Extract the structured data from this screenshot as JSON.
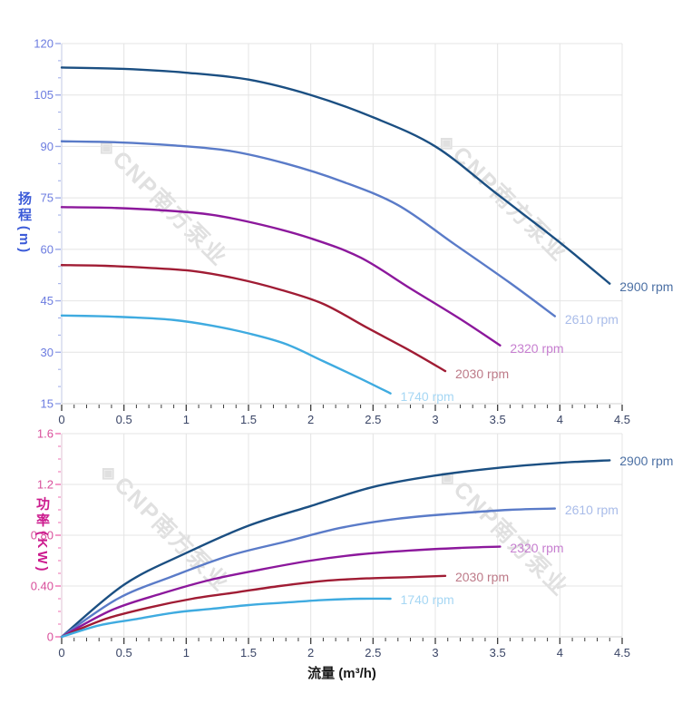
{
  "page": {
    "background": "#ffffff"
  },
  "watermark": {
    "logo_glyph": "◈",
    "text": "CNP南方泵业",
    "color": "#c7c7c7"
  },
  "x_axis": {
    "title": "流量 (m³/h)",
    "title_color": "#1a1a1a",
    "min": 0,
    "max": 4.5,
    "major_step": 0.5,
    "minor_step": 0.1,
    "tick_labels": [
      "0",
      "0.5",
      "1",
      "1.5",
      "2",
      "2.5",
      "3",
      "3.5",
      "4",
      "4.5"
    ],
    "tick_label_color": "#3a4566",
    "tick_color": "#3c3c3c",
    "axis_line_color": "#d9d9d9"
  },
  "chart_data": [
    {
      "type": "line",
      "id": "head",
      "axis_title_cn": "扬程",
      "axis_title_unit": "(m)",
      "axis_title_color": "#3c5bd8",
      "ylabel": "扬程 (m)",
      "xlabel": "流量 (m³/h)",
      "xlim": [
        0,
        4.5
      ],
      "ylim": [
        15,
        120
      ],
      "y_major": 15,
      "y_minor": 5,
      "y_tick_labels": [
        "15",
        "30",
        "45",
        "60",
        "75",
        "90",
        "105",
        "120"
      ],
      "y_tick_label_color": "#6c7ce0",
      "y_tick_color": "#9aa8e8",
      "y_axis_line_color": "#ccd2ea",
      "grid": true,
      "legend_position": "end-of-line",
      "series": [
        {
          "label": "2900 rpm",
          "color": "#1b4f82",
          "label_color": "#4c70a4",
          "points": [
            [
              0,
              113
            ],
            [
              0.5,
              112.6
            ],
            [
              1,
              111.5
            ],
            [
              1.5,
              109.5
            ],
            [
              2,
              105
            ],
            [
              2.5,
              98.5
            ],
            [
              3,
              90
            ],
            [
              3.5,
              76
            ],
            [
              4,
              62
            ],
            [
              4.4,
              50
            ]
          ]
        },
        {
          "label": "2610 rpm",
          "color": "#5a7bc8",
          "label_color": "#a9bce9",
          "points": [
            [
              0,
              91.5
            ],
            [
              0.45,
              91.2
            ],
            [
              0.9,
              90.3
            ],
            [
              1.35,
              88.7
            ],
            [
              1.8,
              85
            ],
            [
              2.25,
              79.8
            ],
            [
              2.7,
              72.9
            ],
            [
              3.15,
              61.6
            ],
            [
              3.6,
              50.2
            ],
            [
              3.96,
              40.5
            ]
          ]
        },
        {
          "label": "2320 rpm",
          "color": "#8c189c",
          "label_color": "#c77fd0",
          "points": [
            [
              0,
              72.3
            ],
            [
              0.4,
              72.1
            ],
            [
              0.8,
              71.4
            ],
            [
              1.2,
              70.1
            ],
            [
              1.6,
              67.2
            ],
            [
              2,
              63.2
            ],
            [
              2.4,
              57.6
            ],
            [
              2.8,
              48.6
            ],
            [
              3.2,
              39.7
            ],
            [
              3.52,
              32
            ]
          ]
        },
        {
          "label": "2030 rpm",
          "color": "#a01c34",
          "label_color": "#bd7a88",
          "points": [
            [
              0,
              55.4
            ],
            [
              0.35,
              55.2
            ],
            [
              0.7,
              54.6
            ],
            [
              1.05,
              53.7
            ],
            [
              1.4,
              51.5
            ],
            [
              1.75,
              48.3
            ],
            [
              2.1,
              44.1
            ],
            [
              2.45,
              37.2
            ],
            [
              2.8,
              30.4
            ],
            [
              3.08,
              24.5
            ]
          ]
        },
        {
          "label": "1740 rpm",
          "color": "#3fabe0",
          "label_color": "#a6d7f4",
          "points": [
            [
              0,
              40.7
            ],
            [
              0.3,
              40.5
            ],
            [
              0.6,
              40.1
            ],
            [
              0.9,
              39.4
            ],
            [
              1.2,
              37.8
            ],
            [
              1.5,
              35.5
            ],
            [
              1.8,
              32.4
            ],
            [
              2.1,
              27.4
            ],
            [
              2.4,
              22.3
            ],
            [
              2.64,
              18
            ]
          ]
        }
      ]
    },
    {
      "type": "line",
      "id": "power",
      "axis_title_cn": "功率",
      "axis_title_unit": "(KW)",
      "axis_title_color": "#cc1b8e",
      "ylabel": "功率 (KW)",
      "xlabel": "流量 (m³/h)",
      "xlim": [
        0,
        4.5
      ],
      "ylim": [
        0,
        1.6
      ],
      "y_major": 0.4,
      "y_minor": 0.1,
      "y_tick_labels": [
        "0",
        "0.40",
        "0.80",
        "1.2",
        "1.6"
      ],
      "y_tick_label_color": "#d84f9b",
      "y_tick_color": "#ef6fb2",
      "y_axis_line_color": "#e4ccda",
      "grid": true,
      "legend_position": "end-of-line",
      "series": [
        {
          "label": "2900 rpm",
          "color": "#1b4f82",
          "label_color": "#4c70a4",
          "points": [
            [
              0,
              0
            ],
            [
              0.5,
              0.41
            ],
            [
              1,
              0.66
            ],
            [
              1.5,
              0.875
            ],
            [
              2,
              1.03
            ],
            [
              2.5,
              1.18
            ],
            [
              3,
              1.27
            ],
            [
              3.5,
              1.33
            ],
            [
              4,
              1.37
            ],
            [
              4.4,
              1.39
            ]
          ]
        },
        {
          "label": "2610 rpm",
          "color": "#5a7bc8",
          "label_color": "#a9bce9",
          "points": [
            [
              0,
              0
            ],
            [
              0.45,
              0.3
            ],
            [
              0.9,
              0.48
            ],
            [
              1.35,
              0.64
            ],
            [
              1.8,
              0.75
            ],
            [
              2.25,
              0.86
            ],
            [
              2.7,
              0.93
            ],
            [
              3.15,
              0.97
            ],
            [
              3.6,
              1.0
            ],
            [
              3.96,
              1.01
            ]
          ]
        },
        {
          "label": "2320 rpm",
          "color": "#8c189c",
          "label_color": "#c77fd0",
          "points": [
            [
              0,
              0
            ],
            [
              0.4,
              0.21
            ],
            [
              0.8,
              0.34
            ],
            [
              1.2,
              0.45
            ],
            [
              1.6,
              0.53
            ],
            [
              2,
              0.6
            ],
            [
              2.4,
              0.65
            ],
            [
              2.8,
              0.68
            ],
            [
              3.2,
              0.7
            ],
            [
              3.52,
              0.71
            ]
          ]
        },
        {
          "label": "2030 rpm",
          "color": "#a01c34",
          "label_color": "#bd7a88",
          "points": [
            [
              0,
              0
            ],
            [
              0.35,
              0.14
            ],
            [
              0.7,
              0.23
            ],
            [
              1.05,
              0.3
            ],
            [
              1.4,
              0.35
            ],
            [
              1.75,
              0.4
            ],
            [
              2.1,
              0.44
            ],
            [
              2.45,
              0.46
            ],
            [
              2.8,
              0.47
            ],
            [
              3.08,
              0.48
            ]
          ]
        },
        {
          "label": "1740 rpm",
          "color": "#3fabe0",
          "label_color": "#a6d7f4",
          "points": [
            [
              0,
              0
            ],
            [
              0.3,
              0.09
            ],
            [
              0.6,
              0.14
            ],
            [
              0.9,
              0.19
            ],
            [
              1.2,
              0.22
            ],
            [
              1.5,
              0.25
            ],
            [
              1.8,
              0.27
            ],
            [
              2.1,
              0.29
            ],
            [
              2.4,
              0.3
            ],
            [
              2.64,
              0.3
            ]
          ]
        }
      ]
    }
  ]
}
